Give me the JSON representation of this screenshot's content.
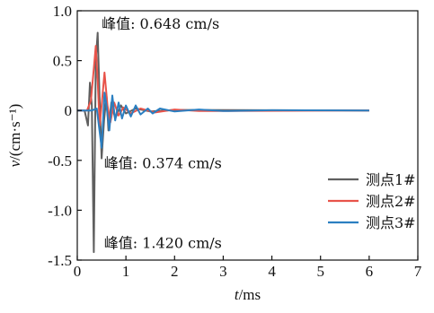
{
  "chart_data": {
    "type": "line",
    "xlabel": {
      "italic": "t",
      "rest": "/ms"
    },
    "ylabel": {
      "italic": "v",
      "rest": "/(cm·s⁻¹)"
    },
    "xlim": [
      0,
      7
    ],
    "ylim": [
      -1.5,
      1.0
    ],
    "xticks": [
      0,
      1,
      2,
      3,
      4,
      5,
      6,
      7
    ],
    "yticks": [
      1.0,
      0.5,
      0,
      -0.5,
      -1.0,
      -1.5
    ],
    "xtick_labels": [
      "0",
      "1",
      "2",
      "3",
      "4",
      "5",
      "6",
      "7"
    ],
    "ytick_labels": [
      "1.0",
      "0.5",
      "0",
      "-0.5",
      "-1.0",
      "-1.5"
    ],
    "grid": false,
    "legend_position": "bottom-right",
    "series": [
      {
        "name": "测点1#",
        "color": "#5f5f5f",
        "points": [
          [
            0,
            0
          ],
          [
            0.15,
            0
          ],
          [
            0.22,
            -0.15
          ],
          [
            0.26,
            0.28
          ],
          [
            0.3,
            0.05
          ],
          [
            0.34,
            -1.42
          ],
          [
            0.38,
            0.5
          ],
          [
            0.42,
            0.78
          ],
          [
            0.46,
            0.1
          ],
          [
            0.5,
            -0.48
          ],
          [
            0.55,
            -0.1
          ],
          [
            0.6,
            0.15
          ],
          [
            0.64,
            -0.2
          ],
          [
            0.7,
            0.08
          ],
          [
            0.78,
            -0.08
          ],
          [
            0.9,
            0.05
          ],
          [
            1.0,
            -0.03
          ],
          [
            1.2,
            0.02
          ],
          [
            1.5,
            -0.01
          ],
          [
            2.0,
            0.005
          ],
          [
            6.0,
            0
          ]
        ]
      },
      {
        "name": "测点2#",
        "color": "#e8534a",
        "points": [
          [
            0,
            0
          ],
          [
            0.2,
            0
          ],
          [
            0.28,
            0.1
          ],
          [
            0.34,
            0.42
          ],
          [
            0.38,
            0.648
          ],
          [
            0.42,
            0.3
          ],
          [
            0.46,
            -0.15
          ],
          [
            0.5,
            0.05
          ],
          [
            0.56,
            0.38
          ],
          [
            0.62,
            0.05
          ],
          [
            0.68,
            -0.12
          ],
          [
            0.76,
            0.08
          ],
          [
            0.85,
            -0.05
          ],
          [
            0.95,
            0.03
          ],
          [
            1.1,
            -0.03
          ],
          [
            1.3,
            0.02
          ],
          [
            1.6,
            -0.02
          ],
          [
            2.0,
            0.01
          ],
          [
            2.5,
            -0.005
          ],
          [
            6.0,
            0
          ]
        ]
      },
      {
        "name": "测点3#",
        "color": "#2b7fc1",
        "points": [
          [
            0,
            0
          ],
          [
            0.3,
            0
          ],
          [
            0.4,
            0.02
          ],
          [
            0.5,
            -0.374
          ],
          [
            0.56,
            0.18
          ],
          [
            0.6,
            0.05
          ],
          [
            0.66,
            -0.2
          ],
          [
            0.72,
            0.15
          ],
          [
            0.78,
            -0.1
          ],
          [
            0.85,
            0.08
          ],
          [
            0.92,
            -0.08
          ],
          [
            1.0,
            0.05
          ],
          [
            1.1,
            -0.06
          ],
          [
            1.2,
            0.05
          ],
          [
            1.3,
            -0.04
          ],
          [
            1.45,
            0.02
          ],
          [
            1.55,
            -0.03
          ],
          [
            1.7,
            0.02
          ],
          [
            2.0,
            -0.01
          ],
          [
            2.5,
            0.01
          ],
          [
            3.0,
            -0.005
          ],
          [
            4.0,
            0.003
          ],
          [
            6.0,
            0
          ]
        ]
      }
    ],
    "annotations": [
      {
        "text": "峰值: 0.648 cm/s",
        "x": 0.5,
        "y": 0.82
      },
      {
        "text": "峰值: 0.374 cm/s",
        "x": 0.55,
        "y": -0.58
      },
      {
        "text": "峰值: 1.420 cm/s",
        "x": 0.55,
        "y": -1.38
      }
    ]
  }
}
